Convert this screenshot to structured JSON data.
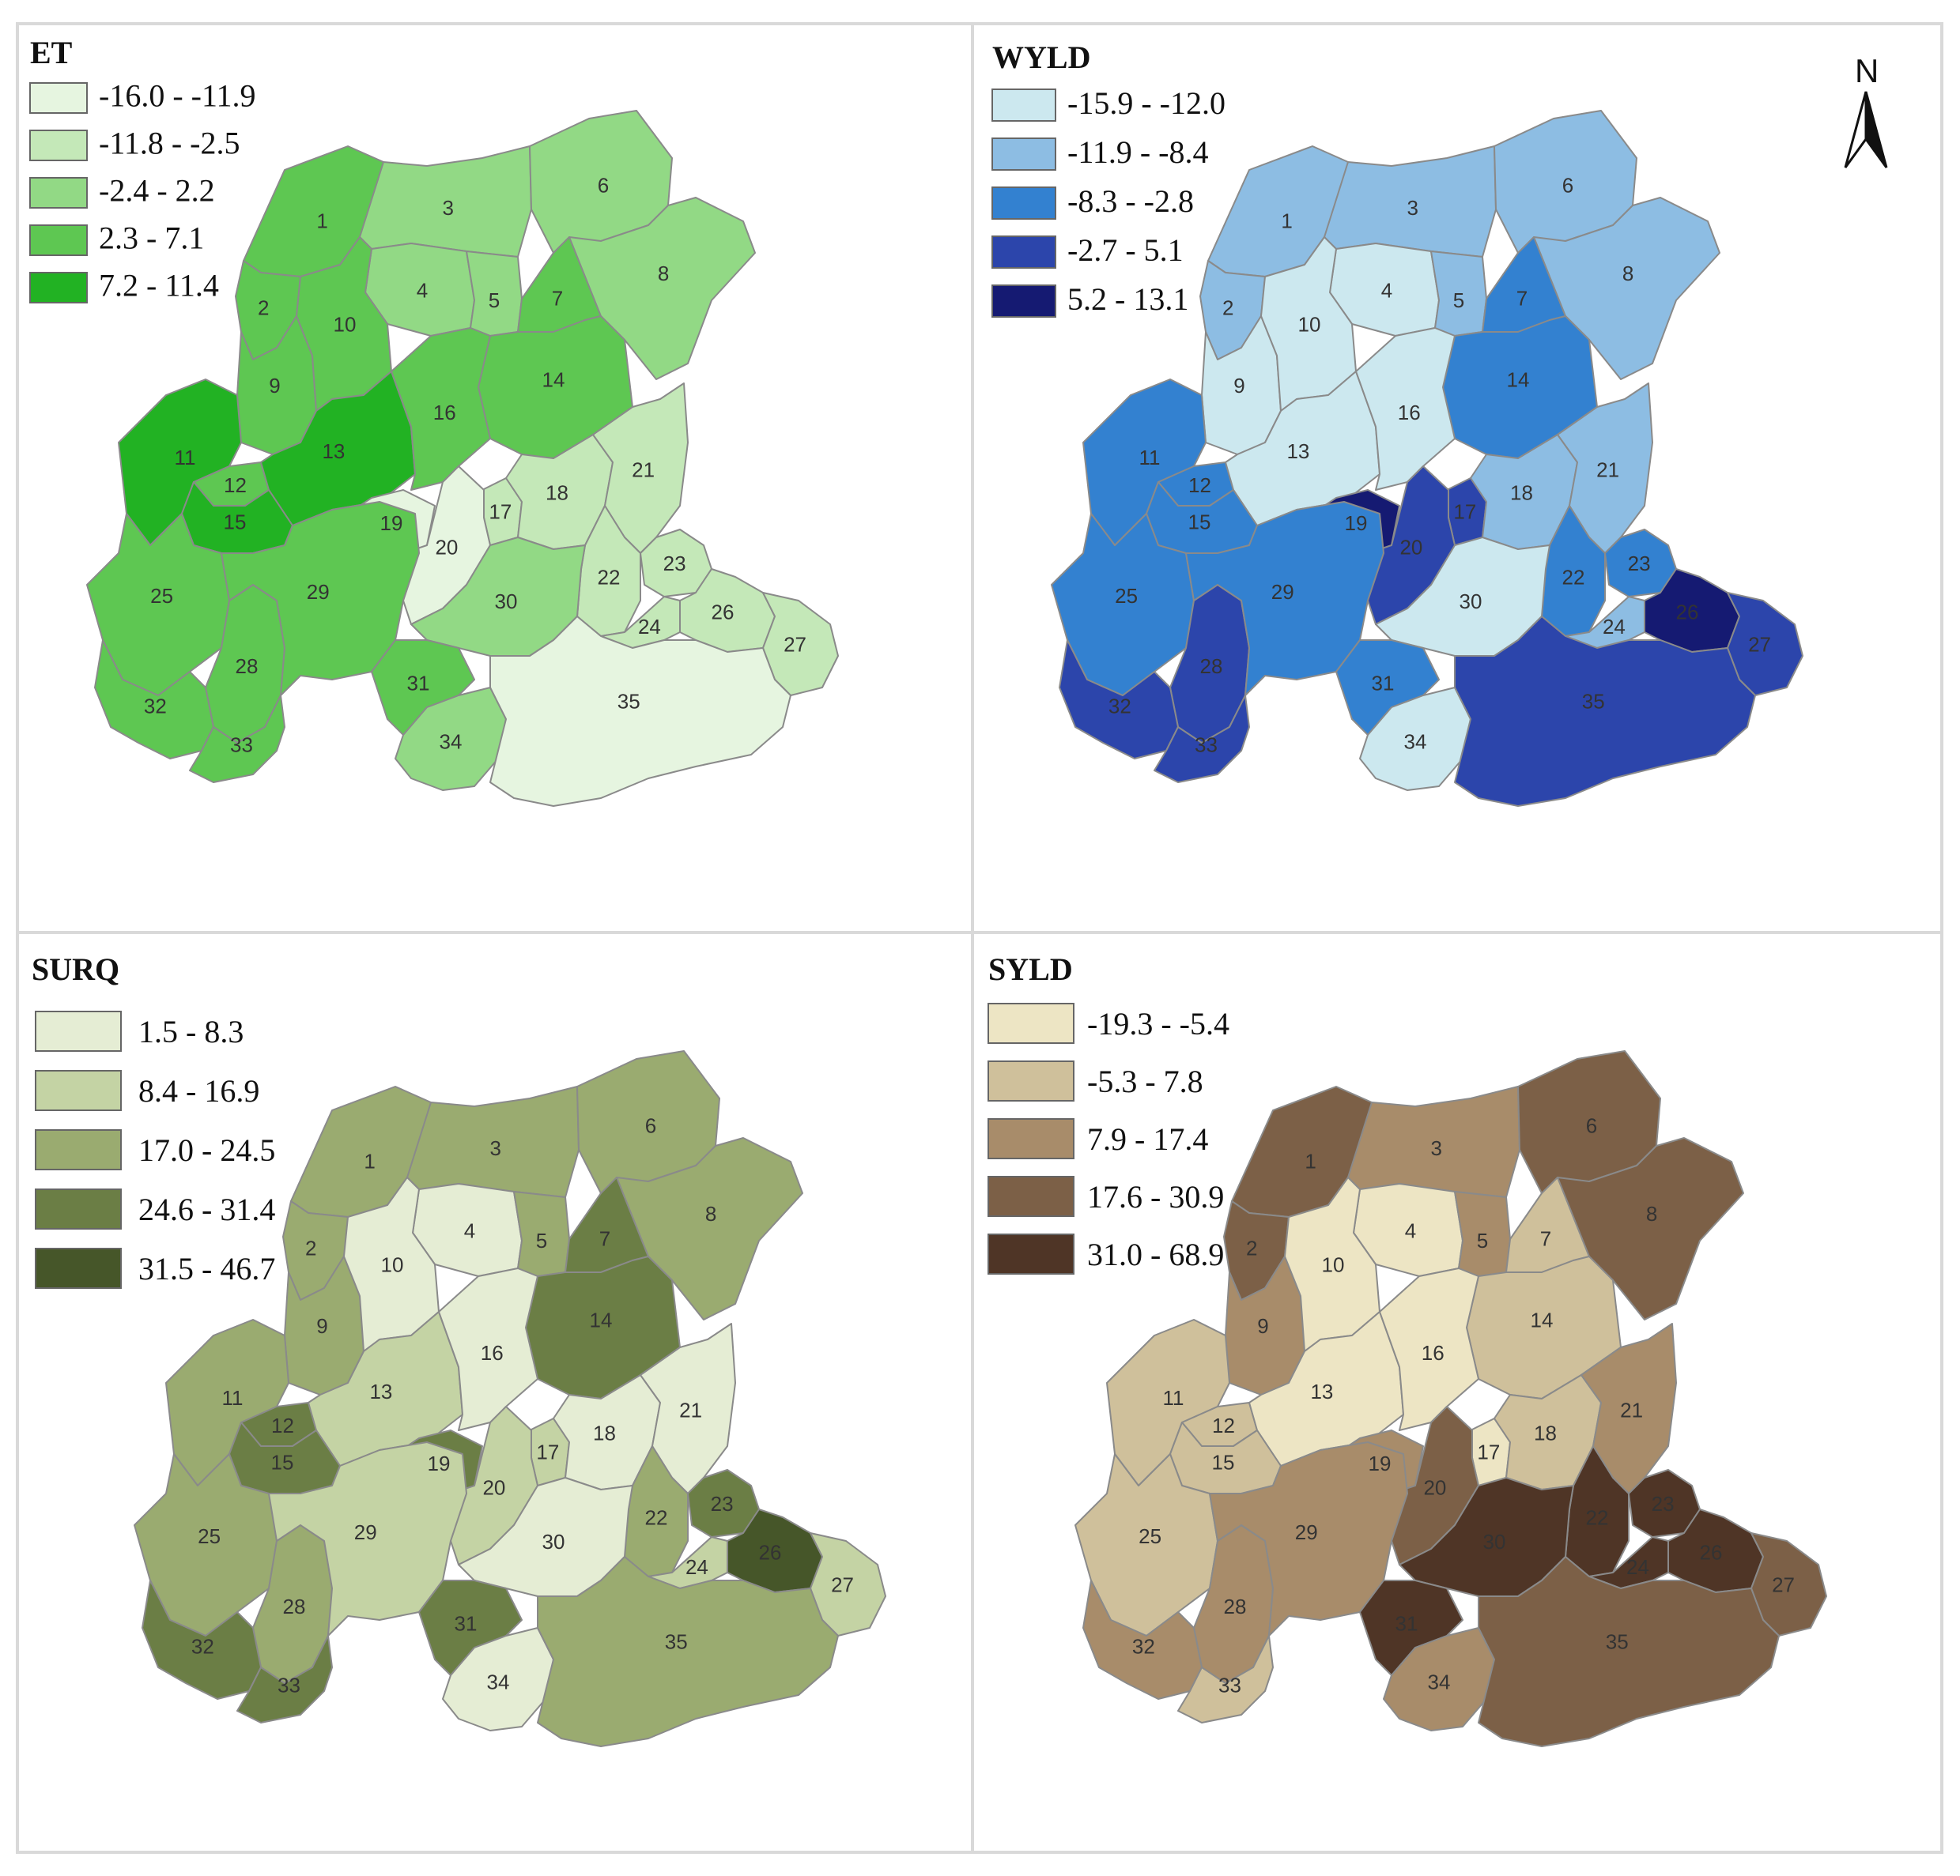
{
  "panels": [
    {
      "id": "et",
      "title": "ET",
      "legend": [
        {
          "label": "-16.0 - -11.9",
          "color": "#e6f5e0"
        },
        {
          "label": "-11.8 - -2.5",
          "color": "#c4e8b8"
        },
        {
          "label": "-2.4 - 2.2",
          "color": "#92d985"
        },
        {
          "label": "2.3 - 7.1",
          "color": "#5ec752"
        },
        {
          "label": "7.2 - 11.4",
          "color": "#22b223"
        }
      ],
      "subbasin_classes": {
        "1": 3,
        "2": 3,
        "3": 2,
        "4": 2,
        "5": 2,
        "6": 2,
        "7": 3,
        "8": 2,
        "9": 3,
        "10": 3,
        "11": 4,
        "12": 3,
        "13": 4,
        "14": 3,
        "15": 4,
        "16": 3,
        "17": 1,
        "18": 1,
        "19": 0,
        "20": 0,
        "21": 1,
        "22": 1,
        "23": 1,
        "24": 1,
        "25": 3,
        "26": 1,
        "27": 1,
        "28": 3,
        "29": 3,
        "30": 2,
        "31": 3,
        "32": 3,
        "33": 3,
        "34": 2,
        "35": 0
      }
    },
    {
      "id": "wyld",
      "title": "WYLD",
      "legend": [
        {
          "label": "-15.9 - -12.0",
          "color": "#cce8ef"
        },
        {
          "label": "-11.9 - -8.4",
          "color": "#8dbde3"
        },
        {
          "label": "-8.3 - -2.8",
          "color": "#3381d0"
        },
        {
          "label": "-2.7 - 5.1",
          "color": "#2c45ab"
        },
        {
          "label": "5.2 - 13.1",
          "color": "#151a72"
        }
      ],
      "subbasin_classes": {
        "1": 1,
        "2": 1,
        "3": 1,
        "4": 0,
        "5": 1,
        "6": 1,
        "7": 2,
        "8": 1,
        "9": 0,
        "10": 0,
        "11": 2,
        "12": 2,
        "13": 0,
        "14": 2,
        "15": 2,
        "16": 0,
        "17": 3,
        "18": 1,
        "19": 4,
        "20": 3,
        "21": 1,
        "22": 2,
        "23": 2,
        "24": 1,
        "25": 2,
        "26": 4,
        "27": 3,
        "28": 3,
        "29": 2,
        "30": 0,
        "31": 2,
        "32": 3,
        "33": 3,
        "34": 0,
        "35": 3
      },
      "north_label": "N"
    },
    {
      "id": "surq",
      "title": "SURQ",
      "legend": [
        {
          "label": "1.5 - 8.3",
          "color": "#e5edd4"
        },
        {
          "label": "8.4 - 16.9",
          "color": "#c4d3a4"
        },
        {
          "label": "17.0 - 24.5",
          "color": "#9aab70"
        },
        {
          "label": "24.6 - 31.4",
          "color": "#6b7e45"
        },
        {
          "label": "31.5 - 46.7",
          "color": "#465629"
        }
      ],
      "subbasin_classes": {
        "1": 2,
        "2": 2,
        "3": 2,
        "4": 0,
        "5": 2,
        "6": 2,
        "7": 3,
        "8": 2,
        "9": 2,
        "10": 0,
        "11": 2,
        "12": 3,
        "13": 1,
        "14": 3,
        "15": 3,
        "16": 0,
        "17": 1,
        "18": 0,
        "19": 3,
        "20": 1,
        "21": 0,
        "22": 2,
        "23": 3,
        "24": 1,
        "25": 2,
        "26": 4,
        "27": 1,
        "28": 2,
        "29": 1,
        "30": 0,
        "31": 3,
        "32": 3,
        "33": 3,
        "34": 0,
        "35": 2
      }
    },
    {
      "id": "syld",
      "title": "SYLD",
      "legend": [
        {
          "label": "-19.3 - -5.4",
          "color": "#ede5c4"
        },
        {
          "label": "-5.3 - 7.8",
          "color": "#cfc09b"
        },
        {
          "label": "7.9 - 17.4",
          "color": "#a88c6a"
        },
        {
          "label": "17.6 - 30.9",
          "color": "#7c6047"
        },
        {
          "label": "31.0 - 68.9",
          "color": "#4f3526"
        }
      ],
      "subbasin_classes": {
        "1": 3,
        "2": 3,
        "3": 2,
        "4": 0,
        "5": 2,
        "6": 3,
        "7": 1,
        "8": 3,
        "9": 2,
        "10": 0,
        "11": 1,
        "12": 1,
        "13": 0,
        "14": 1,
        "15": 1,
        "16": 0,
        "17": 0,
        "18": 1,
        "19": 2,
        "20": 3,
        "21": 2,
        "22": 4,
        "23": 4,
        "24": 4,
        "25": 1,
        "26": 4,
        "27": 3,
        "28": 2,
        "29": 2,
        "30": 4,
        "31": 4,
        "32": 2,
        "33": 1,
        "34": 2,
        "35": 3
      }
    }
  ],
  "subbasin_labels": [
    "1",
    "2",
    "3",
    "4",
    "5",
    "6",
    "7",
    "8",
    "9",
    "10",
    "11",
    "12",
    "13",
    "14",
    "15",
    "16",
    "17",
    "18",
    "19",
    "20",
    "21",
    "22",
    "23",
    "24",
    "25",
    "26",
    "27",
    "28",
    "29",
    "30",
    "31",
    "32",
    "33",
    "34",
    "35"
  ]
}
